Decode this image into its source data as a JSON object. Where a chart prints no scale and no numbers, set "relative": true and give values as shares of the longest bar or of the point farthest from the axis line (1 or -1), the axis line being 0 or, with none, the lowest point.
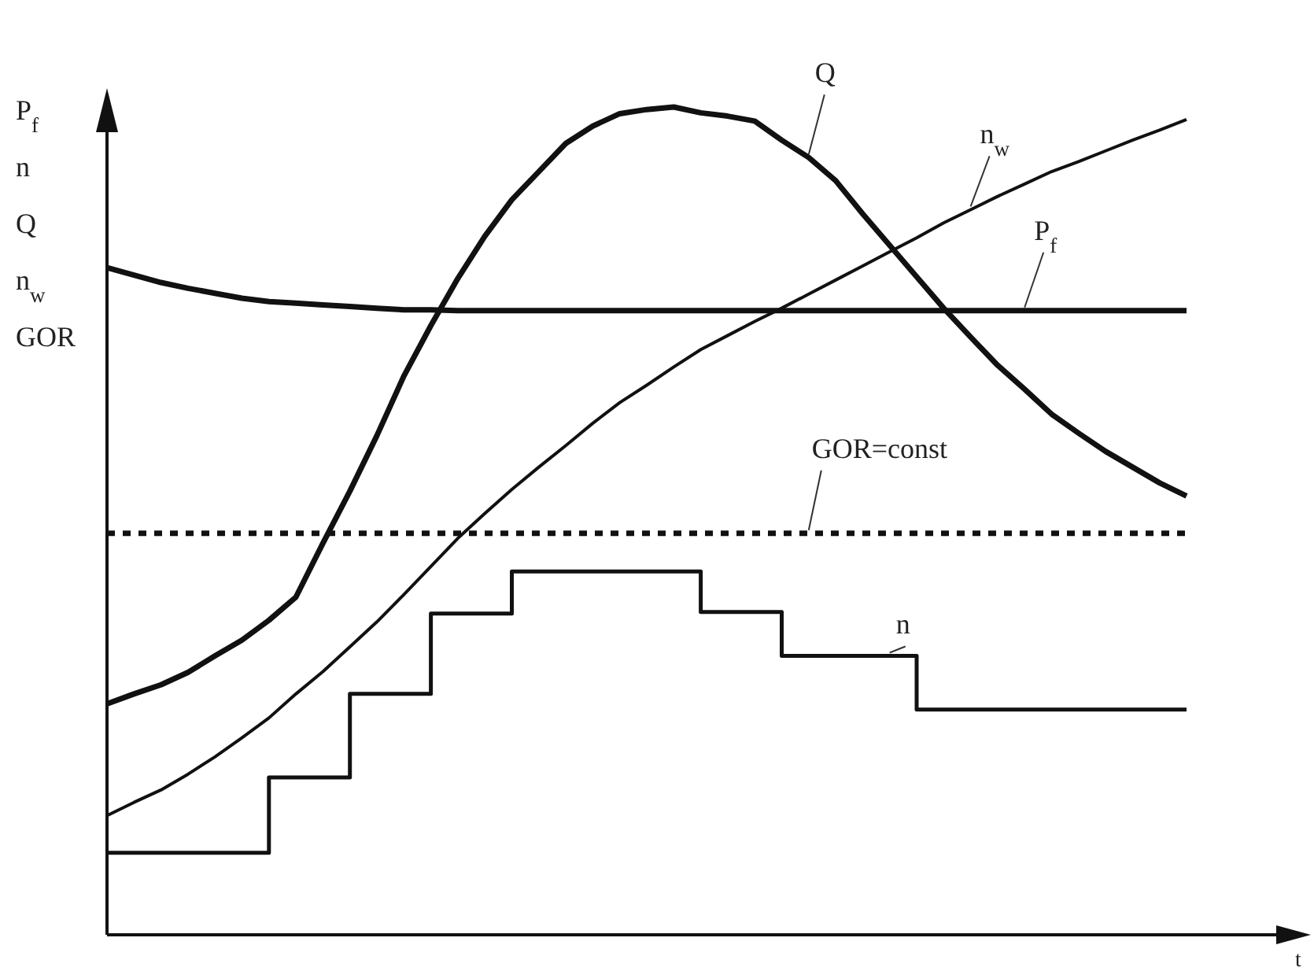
{
  "chart_data": {
    "type": "line",
    "relative": true,
    "xlabel": "t",
    "ylabel": "P$_{f}$\nn\nQ\nn$_{w}$\nGOR",
    "legend": false,
    "marker": "none",
    "categories": [
      null,
      null,
      null,
      null,
      null,
      null,
      null,
      null,
      null,
      null,
      null,
      null,
      null,
      null,
      null,
      null,
      null,
      null,
      null,
      null,
      null,
      null,
      null,
      null,
      null,
      null,
      null,
      null,
      null,
      null,
      null,
      null,
      null,
      null,
      null,
      null,
      null,
      null,
      null,
      null,
      null
    ],
    "series": [
      {
        "name": "Q",
        "color": "#111111",
        "values": [
          0.279,
          0.291,
          0.302,
          0.317,
          0.337,
          0.356,
          0.38,
          0.408,
          0.473,
          0.536,
          0.603,
          0.675,
          0.736,
          0.793,
          0.844,
          0.888,
          0.922,
          0.956,
          0.977,
          0.992,
          0.997,
          1.0,
          0.993,
          0.989,
          0.983,
          0.96,
          0.939,
          0.911,
          0.871,
          0.833,
          0.795,
          0.757,
          0.722,
          0.688,
          0.659,
          0.629,
          0.606,
          0.584,
          0.565,
          0.546,
          0.53
        ]
      },
      {
        "name": "n$_{w}$",
        "color": "#111111",
        "values": [
          0.144,
          0.16,
          0.175,
          0.194,
          0.215,
          0.238,
          0.262,
          0.291,
          0.318,
          0.348,
          0.378,
          0.411,
          0.445,
          0.479,
          0.509,
          0.538,
          0.565,
          0.591,
          0.618,
          0.643,
          0.664,
          0.686,
          0.707,
          0.724,
          0.741,
          0.757,
          0.774,
          0.791,
          0.808,
          0.825,
          0.842,
          0.86,
          0.876,
          0.892,
          0.907,
          0.922,
          0.934,
          0.947,
          0.96,
          0.972,
          0.985
        ]
      },
      {
        "name": "P$_{f}$",
        "color": "#111111",
        "values": [
          0.806,
          0.797,
          0.788,
          0.781,
          0.775,
          0.769,
          0.765,
          0.763,
          0.761,
          0.759,
          0.757,
          0.755,
          0.755,
          0.754,
          0.754,
          0.754,
          0.754,
          0.754,
          0.754,
          0.754,
          0.754,
          0.754,
          0.754,
          0.754,
          0.754,
          0.754,
          0.754,
          0.754,
          0.754,
          0.754,
          0.754,
          0.754,
          0.754,
          0.754,
          0.754,
          0.754,
          0.754,
          0.754,
          0.754,
          0.754,
          0.754
        ]
      },
      {
        "name": "GOR=const",
        "color": "#111111",
        "line_style": "dotted",
        "values": [
          0.485,
          0.485,
          0.485,
          0.485,
          0.485,
          0.485,
          0.485,
          0.485,
          0.485,
          0.485,
          0.485,
          0.485,
          0.485,
          0.485,
          0.485,
          0.485,
          0.485,
          0.485,
          0.485,
          0.485,
          0.485,
          0.485,
          0.485,
          0.485,
          0.485,
          0.485,
          0.485,
          0.485,
          0.485,
          0.485,
          0.485,
          0.485,
          0.485,
          0.485,
          0.485,
          0.485,
          0.485,
          0.485,
          0.485,
          0.485,
          0.485
        ]
      },
      {
        "name": "n",
        "type": "step",
        "color": "#111111",
        "values": [
          0.099,
          0.099,
          0.099,
          0.099,
          0.099,
          0.099,
          0.19,
          0.19,
          0.19,
          0.291,
          0.291,
          0.291,
          0.388,
          0.388,
          0.388,
          0.439,
          0.439,
          0.439,
          0.439,
          0.439,
          0.439,
          0.439,
          0.39,
          0.39,
          0.39,
          0.337,
          0.337,
          0.337,
          0.337,
          0.337,
          0.272,
          0.272,
          0.272,
          0.272,
          0.272,
          0.272,
          0.272,
          0.272,
          0.272,
          0.272,
          0.272
        ]
      }
    ]
  }
}
